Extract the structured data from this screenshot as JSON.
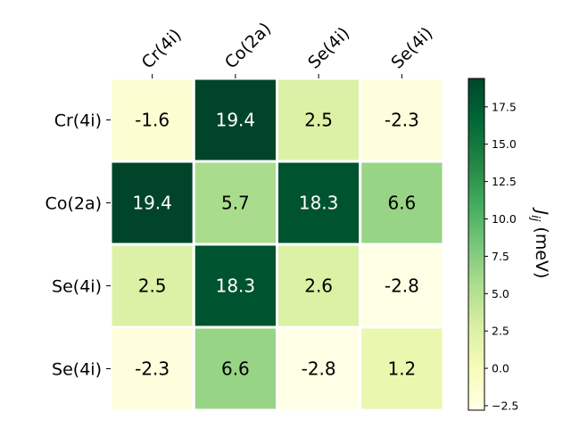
{
  "chart_data": {
    "type": "heatmap",
    "title": "",
    "column_labels": [
      "Cr(4i)",
      "Co(2a)",
      "Se(4i)",
      "Se(4i)"
    ],
    "row_labels": [
      "Cr(4i)",
      "Co(2a)",
      "Se(4i)",
      "Se(4i)"
    ],
    "values": [
      [
        -1.6,
        19.4,
        2.5,
        -2.3
      ],
      [
        19.4,
        5.7,
        18.3,
        6.6
      ],
      [
        2.5,
        18.3,
        2.6,
        -2.8
      ],
      [
        -2.3,
        6.6,
        -2.8,
        1.2
      ]
    ],
    "cell_labels": [
      [
        "-1.6",
        "19.4",
        "2.5",
        "-2.3"
      ],
      [
        "19.4",
        "5.7",
        "18.3",
        "6.6"
      ],
      [
        "2.5",
        "18.3",
        "2.6",
        "-2.8"
      ],
      [
        "-2.3",
        "6.6",
        "-2.8",
        "1.2"
      ]
    ],
    "colorbar": {
      "label_main": "J",
      "label_sub": "ij",
      "label_unit": " (meV)",
      "range": [
        -2.8,
        19.4
      ],
      "ticks": [
        -2.5,
        0.0,
        2.5,
        5.0,
        7.5,
        10.0,
        12.5,
        15.0,
        17.5
      ],
      "tick_labels": [
        "−2.5",
        "0.0",
        "2.5",
        "5.0",
        "7.5",
        "10.0",
        "12.5",
        "15.0",
        "17.5"
      ],
      "colormap": "YlGn",
      "stops": [
        "#ffffe5",
        "#f7fcb9",
        "#d9f0a3",
        "#addd8e",
        "#78c679",
        "#41ab5d",
        "#238443",
        "#006837",
        "#004529"
      ]
    },
    "text_color_dark": "#000000",
    "text_color_light": "#ffffff",
    "grid": false
  }
}
